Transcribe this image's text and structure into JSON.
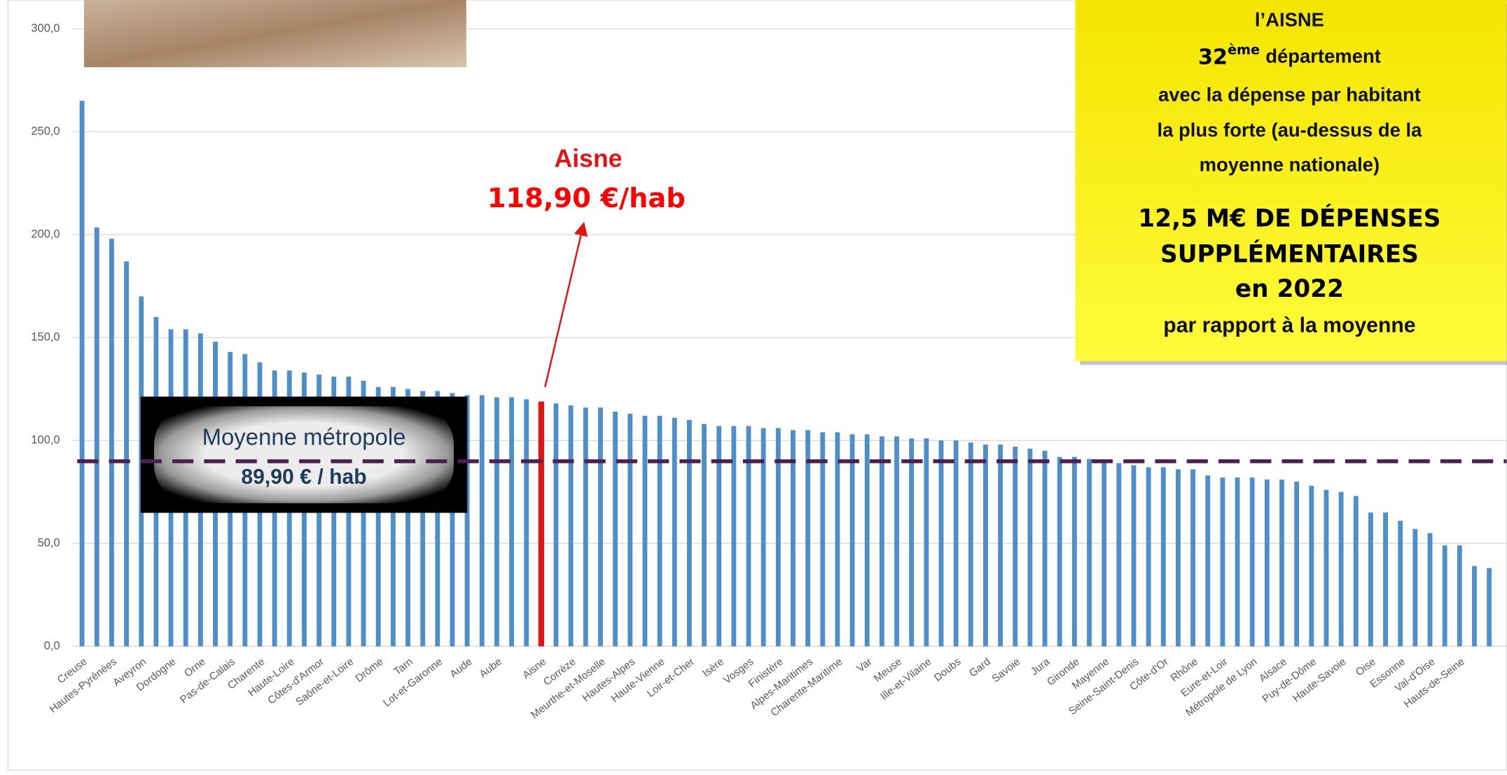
{
  "chart_data": {
    "type": "bar",
    "categories": [
      "Creuse",
      null,
      "Hautes-Pyrénées",
      null,
      "Aveyron",
      null,
      "Dordogne",
      null,
      "Orne",
      null,
      "Pas-de-Calais",
      null,
      "Charente",
      null,
      "Haute-Loire",
      null,
      "Côtes-d'Armor",
      null,
      "Saône-et-Loire",
      null,
      "Drôme",
      null,
      "Tarn",
      null,
      "Lot-et-Garonne",
      null,
      "Aude",
      null,
      "Aube",
      null,
      null,
      "Aisne",
      null,
      "Corrèze",
      null,
      "Meurthe-et-Moselle",
      null,
      "Hautes-Alpes",
      null,
      "Haute-Vienne",
      null,
      "Loir-et-Cher",
      null,
      "Isère",
      null,
      "Vosges",
      null,
      "Finistère",
      null,
      "Alpes-Maritimes",
      null,
      "Charente-Maritime",
      null,
      "Var",
      null,
      "Meuse",
      null,
      "Ille-et-Vilaine",
      null,
      "Doubs",
      null,
      "Gard",
      null,
      "Savoie",
      null,
      "Jura",
      null,
      "Gironde",
      null,
      "Mayenne",
      null,
      "Seine-Saint-Denis",
      null,
      "Côte-d'Or",
      null,
      "Rhône",
      null,
      "Eure-et-Loir",
      null,
      "Métropole de Lyon",
      null,
      "Alsace",
      null,
      "Puy-de-Dôme",
      null,
      "Haute-Savoie",
      null,
      "Oise",
      null,
      "Essonne",
      null,
      "Val-d'Oise",
      null,
      "Hauts-de-Seine",
      null,
      null
    ],
    "values": [
      265,
      203.5,
      198,
      187,
      170,
      160,
      154,
      154,
      152,
      148,
      143,
      142,
      138,
      134,
      134,
      133,
      132,
      131,
      131,
      129,
      126,
      126,
      125,
      124,
      124,
      123,
      122,
      122,
      121,
      121,
      120,
      118.9,
      118,
      117,
      116,
      116,
      114,
      113,
      112,
      112,
      111,
      110,
      108,
      107,
      107,
      107,
      106,
      106,
      105,
      105,
      104,
      104,
      103,
      103,
      102,
      102,
      101,
      101,
      100,
      100,
      99,
      98,
      98,
      97,
      96,
      95,
      92,
      92,
      91,
      90,
      89,
      88,
      87,
      87,
      86,
      86,
      83,
      82,
      82,
      82,
      81,
      81,
      80,
      78,
      76,
      75,
      73,
      65,
      65,
      61,
      57,
      55,
      49,
      49,
      39,
      38
    ],
    "color": "#4f8fc9",
    "highlight_color": "#e31414",
    "ylim": [
      0,
      300
    ],
    "yticks": [
      {
        "value": 0,
        "label": "0,0"
      },
      {
        "value": 50,
        "label": "50,0"
      },
      {
        "value": 100,
        "label": "100,0"
      },
      {
        "value": 150,
        "label": "150,0"
      },
      {
        "value": 200,
        "label": "200,0"
      },
      {
        "value": 250,
        "label": "250,0"
      },
      {
        "value": 300,
        "label": "300,0"
      }
    ],
    "grid": true,
    "annotation": {
      "category": "Aisne",
      "text": "118,90 €/hab"
    },
    "reference_line": {
      "value": 89.9,
      "label": "Moyenne métropole",
      "value_label": "89,90 € / hab",
      "color": "#4b1f4f"
    }
  },
  "info_box": {
    "title": "l’AISNE",
    "rank": "32",
    "rank_suffix": "ème",
    "rank_text": "département",
    "lines": [
      "avec la dépense par habitant",
      "la plus forte (au-dessus de la",
      "moyenne nationale)"
    ],
    "headline": [
      "12,5 M€ DE DÉPENSES",
      "SUPPLÉMENTAIRES",
      "en 2022"
    ],
    "footer": "par rapport à la moyenne"
  }
}
